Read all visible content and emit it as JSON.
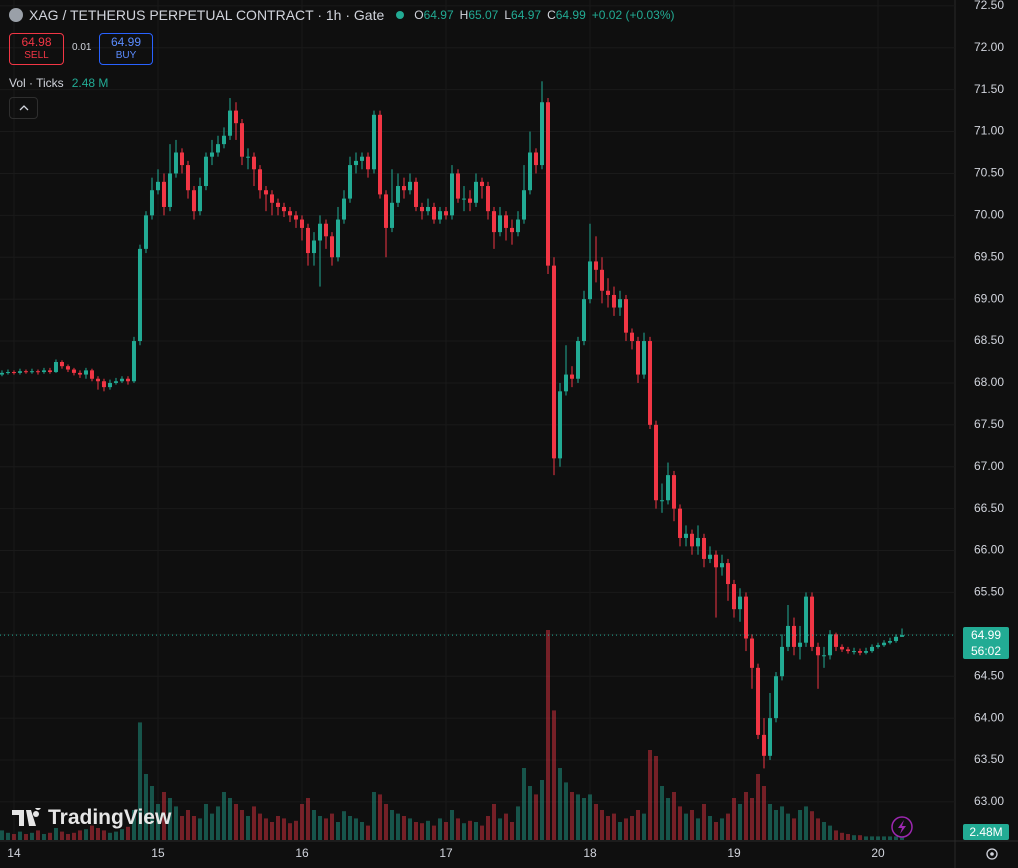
{
  "header": {
    "title": "XAG / TETHERUS PERPETUAL CONTRACT · 1h · Gate",
    "ohlc_labels": [
      "O",
      "H",
      "L",
      "C"
    ],
    "change": "+0.02 (+0.03%)",
    "sell": {
      "price": "64.98",
      "label": "SELL"
    },
    "spread": "0.01",
    "buy": {
      "price": "64.99",
      "label": "BUY"
    },
    "volume": {
      "label": "Vol · Ticks",
      "value": "2.48 M"
    },
    "volume_axis_label": "2.48M",
    "countdown": "56:02",
    "watermark": "TradingView"
  },
  "chart_data": {
    "type": "candlestick",
    "up_color": "#22ab94",
    "down_color": "#f23645",
    "grid": true,
    "x": [
      -2,
      -1,
      0,
      1,
      2,
      3,
      4,
      5,
      6,
      7,
      8,
      9,
      10,
      11,
      12,
      13,
      14,
      15,
      16,
      17,
      18,
      19,
      20,
      21,
      22,
      23,
      24,
      25,
      26,
      27,
      28,
      29,
      30,
      31,
      32,
      33,
      34,
      35,
      36,
      37,
      38,
      39,
      40,
      41,
      42,
      43,
      44,
      45,
      46,
      47,
      48,
      49,
      50,
      51,
      52,
      53,
      54,
      55,
      56,
      57,
      58,
      59,
      60,
      61,
      62,
      63,
      64,
      65,
      66,
      67,
      68,
      69,
      70,
      71,
      72,
      73,
      74,
      75,
      76,
      77,
      78,
      79,
      80,
      81,
      82,
      83,
      84,
      85,
      86,
      87,
      88,
      89,
      90,
      91,
      92,
      93,
      94,
      95,
      96,
      97,
      98,
      99,
      100,
      101,
      102,
      103,
      104,
      105,
      106,
      107,
      108,
      109,
      110,
      111,
      112,
      113,
      114,
      115,
      116,
      117,
      118,
      119,
      120,
      121,
      122,
      123,
      124,
      125,
      126,
      127,
      128,
      129,
      130,
      131,
      132,
      133,
      134,
      135,
      136,
      137,
      138,
      139,
      140,
      141,
      142,
      143,
      144,
      145,
      146,
      147,
      148
    ],
    "open": [
      68.1,
      68.12,
      68.13,
      68.12,
      68.14,
      68.13,
      68.14,
      68.13,
      68.15,
      68.13,
      68.25,
      68.2,
      68.16,
      68.12,
      68.1,
      68.15,
      68.05,
      68.02,
      67.95,
      68.0,
      68.02,
      68.05,
      68.02,
      68.5,
      69.6,
      70.0,
      70.3,
      70.4,
      70.1,
      70.5,
      70.75,
      70.6,
      70.3,
      70.05,
      70.35,
      70.7,
      70.75,
      70.85,
      70.95,
      71.25,
      71.1,
      70.7,
      70.7,
      70.55,
      70.3,
      70.25,
      70.15,
      70.1,
      70.05,
      70.0,
      69.95,
      69.85,
      69.55,
      69.7,
      69.9,
      69.75,
      69.5,
      69.95,
      70.2,
      70.6,
      70.65,
      70.7,
      70.55,
      71.2,
      70.25,
      69.85,
      70.15,
      70.35,
      70.3,
      70.4,
      70.1,
      70.05,
      70.1,
      69.95,
      70.05,
      70.0,
      70.5,
      70.2,
      70.2,
      70.15,
      70.4,
      70.35,
      70.05,
      69.8,
      70.0,
      69.85,
      69.8,
      69.95,
      70.3,
      70.75,
      70.6,
      71.35,
      69.4,
      67.1,
      67.9,
      68.1,
      68.05,
      68.5,
      69.0,
      69.45,
      69.35,
      69.1,
      69.05,
      68.9,
      69.0,
      68.6,
      68.5,
      68.1,
      68.5,
      67.5,
      66.6,
      66.6,
      66.9,
      66.5,
      66.15,
      66.2,
      66.05,
      66.15,
      65.9,
      65.95,
      65.8,
      65.85,
      65.6,
      65.3,
      65.45,
      64.95,
      64.6,
      63.8,
      63.55,
      64.0,
      64.5,
      64.85,
      65.1,
      64.85,
      64.9,
      65.45,
      64.85,
      64.75,
      64.75,
      65.0,
      64.85,
      64.82,
      64.8,
      64.8,
      64.78,
      64.8,
      64.85,
      64.87,
      64.9,
      64.92,
      64.97
    ],
    "high": [
      68.15,
      68.16,
      68.15,
      68.17,
      68.16,
      68.17,
      68.16,
      68.18,
      68.18,
      68.28,
      68.27,
      68.22,
      68.18,
      68.15,
      68.18,
      68.17,
      68.08,
      68.05,
      68.04,
      68.06,
      68.08,
      68.08,
      68.55,
      69.65,
      70.05,
      70.45,
      70.55,
      70.5,
      70.85,
      70.9,
      70.8,
      70.65,
      70.35,
      70.45,
      70.75,
      70.9,
      70.95,
      71.05,
      71.4,
      71.35,
      71.15,
      70.8,
      70.75,
      70.6,
      70.35,
      70.3,
      70.2,
      70.15,
      70.1,
      70.05,
      70.0,
      69.9,
      69.8,
      70.0,
      69.95,
      69.8,
      70.1,
      70.3,
      70.7,
      70.75,
      70.75,
      70.75,
      71.25,
      71.25,
      70.3,
      70.55,
      70.5,
      70.45,
      70.5,
      70.45,
      70.15,
      70.2,
      70.15,
      70.1,
      70.1,
      70.6,
      70.55,
      70.35,
      70.3,
      70.5,
      70.45,
      70.4,
      70.1,
      70.1,
      70.05,
      69.95,
      70.05,
      70.6,
      71.0,
      70.8,
      71.6,
      71.4,
      69.5,
      68.0,
      68.45,
      68.2,
      68.55,
      69.1,
      69.9,
      69.75,
      69.5,
      69.25,
      69.15,
      69.1,
      69.05,
      68.65,
      68.55,
      68.6,
      68.55,
      67.55,
      66.8,
      67.05,
      66.95,
      66.55,
      66.3,
      66.25,
      66.3,
      66.2,
      66.05,
      66.0,
      65.95,
      65.9,
      65.65,
      65.55,
      65.5,
      65.0,
      64.65,
      64.0,
      64.3,
      64.55,
      65.0,
      65.35,
      65.2,
      65.1,
      65.5,
      65.5,
      64.9,
      64.85,
      65.05,
      65.02,
      64.88,
      64.85,
      64.84,
      64.83,
      64.84,
      64.88,
      64.9,
      64.93,
      64.96,
      65.0,
      65.07
    ],
    "low": [
      68.08,
      68.1,
      68.1,
      68.1,
      68.11,
      68.11,
      68.1,
      68.11,
      68.11,
      68.12,
      68.17,
      68.13,
      68.09,
      68.06,
      68.05,
      68.02,
      67.92,
      67.9,
      67.92,
      67.98,
      68.0,
      67.98,
      68.0,
      68.45,
      69.55,
      69.95,
      70.25,
      70.0,
      70.05,
      70.45,
      70.5,
      70.2,
      69.95,
      70.0,
      70.3,
      70.6,
      70.7,
      70.8,
      70.9,
      70.9,
      70.6,
      70.55,
      70.35,
      70.2,
      70.05,
      70.0,
      70.0,
      69.98,
      69.92,
      69.85,
      69.7,
      69.4,
      69.4,
      69.15,
      69.6,
      69.4,
      69.45,
      69.9,
      70.15,
      70.5,
      70.55,
      70.45,
      70.5,
      70.2,
      69.5,
      69.8,
      70.1,
      70.2,
      70.25,
      70.05,
      69.95,
      70.0,
      69.9,
      69.9,
      69.95,
      69.95,
      70.15,
      70.05,
      70.05,
      70.1,
      70.2,
      69.95,
      69.6,
      69.75,
      69.7,
      69.65,
      69.75,
      69.9,
      70.25,
      70.5,
      70.55,
      69.3,
      66.9,
      67.0,
      67.85,
      67.95,
      68.0,
      68.45,
      68.95,
      69.2,
      68.95,
      68.9,
      68.8,
      68.8,
      68.5,
      68.4,
      68.0,
      68.05,
      67.45,
      66.5,
      66.45,
      66.55,
      66.35,
      66.05,
      66.05,
      65.95,
      65.95,
      65.8,
      65.85,
      65.2,
      65.7,
      65.4,
      65.2,
      65.15,
      64.8,
      64.35,
      63.75,
      63.4,
      63.5,
      63.95,
      64.45,
      64.8,
      64.75,
      64.7,
      64.85,
      64.8,
      64.35,
      64.6,
      64.7,
      64.8,
      64.79,
      64.77,
      64.76,
      64.75,
      64.76,
      64.78,
      64.83,
      64.85,
      64.88,
      64.9,
      64.97
    ],
    "close": [
      68.12,
      68.13,
      68.12,
      68.14,
      68.13,
      68.14,
      68.13,
      68.15,
      68.13,
      68.25,
      68.2,
      68.16,
      68.12,
      68.1,
      68.15,
      68.05,
      68.02,
      67.95,
      68.0,
      68.02,
      68.05,
      68.02,
      68.5,
      69.6,
      70.0,
      70.3,
      70.4,
      70.1,
      70.5,
      70.75,
      70.6,
      70.3,
      70.05,
      70.35,
      70.7,
      70.75,
      70.85,
      70.95,
      71.25,
      71.1,
      70.7,
      70.7,
      70.55,
      70.3,
      70.25,
      70.15,
      70.1,
      70.05,
      70.0,
      69.95,
      69.85,
      69.55,
      69.7,
      69.9,
      69.75,
      69.5,
      69.95,
      70.2,
      70.6,
      70.65,
      70.7,
      70.55,
      71.2,
      70.25,
      69.85,
      70.15,
      70.35,
      70.3,
      70.4,
      70.1,
      70.05,
      70.1,
      69.95,
      70.05,
      70.0,
      70.5,
      70.2,
      70.2,
      70.15,
      70.4,
      70.35,
      70.05,
      69.8,
      70.0,
      69.85,
      69.8,
      69.95,
      70.3,
      70.75,
      70.6,
      71.35,
      69.4,
      67.1,
      67.9,
      68.1,
      68.05,
      68.5,
      69.0,
      69.45,
      69.35,
      69.1,
      69.05,
      68.9,
      69.0,
      68.6,
      68.5,
      68.1,
      68.5,
      67.5,
      66.6,
      66.6,
      66.9,
      66.5,
      66.15,
      66.2,
      66.05,
      66.15,
      65.9,
      65.95,
      65.8,
      65.85,
      65.6,
      65.3,
      65.45,
      64.95,
      64.6,
      63.8,
      63.55,
      64.0,
      64.5,
      64.85,
      65.1,
      64.85,
      64.9,
      65.45,
      64.85,
      64.75,
      64.75,
      65.0,
      64.85,
      64.82,
      64.8,
      64.8,
      64.78,
      64.8,
      64.85,
      64.87,
      64.9,
      64.92,
      64.97,
      64.99
    ],
    "volume": [
      8,
      6,
      5,
      7,
      5,
      6,
      8,
      5,
      6,
      10,
      7,
      5,
      6,
      8,
      9,
      12,
      10,
      8,
      6,
      7,
      9,
      11,
      25,
      98,
      55,
      45,
      30,
      40,
      35,
      28,
      20,
      25,
      20,
      18,
      30,
      22,
      28,
      40,
      35,
      30,
      25,
      20,
      28,
      22,
      18,
      15,
      20,
      18,
      14,
      16,
      30,
      35,
      25,
      20,
      18,
      22,
      15,
      24,
      20,
      18,
      15,
      12,
      40,
      38,
      30,
      25,
      22,
      20,
      18,
      15,
      14,
      16,
      12,
      18,
      15,
      25,
      18,
      14,
      16,
      15,
      12,
      20,
      30,
      18,
      22,
      15,
      28,
      60,
      45,
      38,
      50,
      175,
      108,
      60,
      48,
      40,
      38,
      35,
      38,
      30,
      25,
      20,
      22,
      15,
      18,
      20,
      25,
      22,
      75,
      70,
      45,
      35,
      40,
      28,
      22,
      25,
      18,
      30,
      20,
      15,
      18,
      22,
      35,
      30,
      40,
      35,
      55,
      45,
      30,
      25,
      28,
      22,
      18,
      25,
      28,
      24,
      18,
      15,
      12,
      8,
      6,
      5,
      4,
      4,
      3,
      3,
      3,
      3,
      3,
      3,
      2.48
    ],
    "xlim": [
      -2.33,
      156.83
    ],
    "xticks": [
      {
        "value": 0,
        "label": "14"
      },
      {
        "value": 24,
        "label": "15"
      },
      {
        "value": 48,
        "label": "16"
      },
      {
        "value": 72,
        "label": "17"
      },
      {
        "value": 96,
        "label": "18"
      },
      {
        "value": 120,
        "label": "19"
      },
      {
        "value": 144,
        "label": "20"
      }
    ],
    "ylim": [
      62.45,
      72.57
    ],
    "yticks": [
      {
        "value": 63,
        "label": "63.00"
      },
      {
        "value": 63.5,
        "label": "63.50"
      },
      {
        "value": 64,
        "label": "64.00"
      },
      {
        "value": 64.5,
        "label": "64.50"
      },
      {
        "value": 65,
        "label": "65.00"
      },
      {
        "value": 65.5,
        "label": "65.50"
      },
      {
        "value": 66,
        "label": "66.00"
      },
      {
        "value": 66.5,
        "label": "66.50"
      },
      {
        "value": 67,
        "label": "67.00"
      },
      {
        "value": 67.5,
        "label": "67.50"
      },
      {
        "value": 68,
        "label": "68.00"
      },
      {
        "value": 68.5,
        "label": "68.50"
      },
      {
        "value": 69,
        "label": "69.00"
      },
      {
        "value": 69.5,
        "label": "69.50"
      },
      {
        "value": 70,
        "label": "70.00"
      },
      {
        "value": 70.5,
        "label": "70.50"
      },
      {
        "value": 71,
        "label": "71.00"
      },
      {
        "value": 71.5,
        "label": "71.50"
      },
      {
        "value": 72,
        "label": "72.00"
      },
      {
        "value": 72.5,
        "label": "72.50"
      }
    ]
  }
}
